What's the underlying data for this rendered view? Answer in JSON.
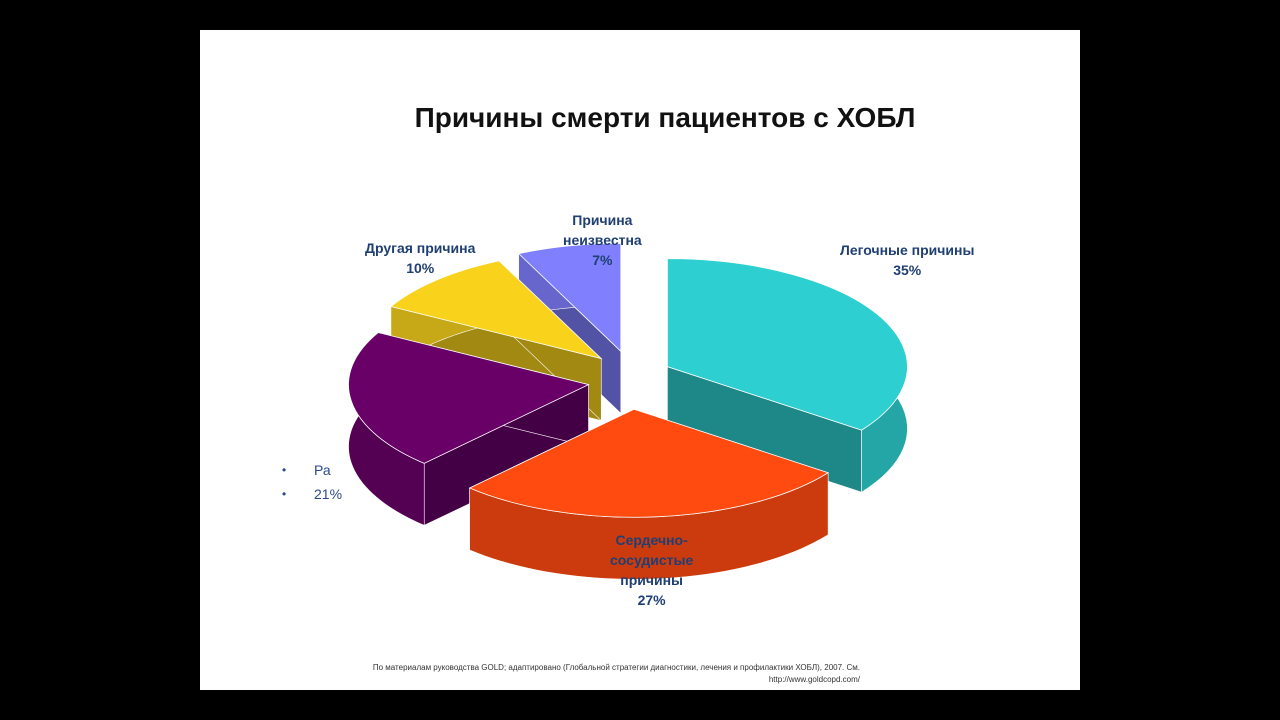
{
  "chart_data": {
    "type": "pie",
    "title": "Причины смерти пациентов с ХОБЛ",
    "slices": [
      {
        "label": "Легочные причины",
        "value": 35,
        "value_text": "35%",
        "color": "#2ecfd0"
      },
      {
        "label": "Сердечно-сосудистые причины",
        "value": 27,
        "value_text": "27%",
        "color": "#ff4a10"
      },
      {
        "label": "Ра",
        "value": 21,
        "value_text": "21%",
        "color": "#690068"
      },
      {
        "label": "Другая причина",
        "value": 10,
        "value_text": "10%",
        "color": "#f9d21c"
      },
      {
        "label": "Причина неизвестна",
        "value": 7,
        "value_text": "7%",
        "color": "#8080ff"
      }
    ]
  },
  "labels": {
    "pulmonary": [
      "Легочные причины",
      "35%"
    ],
    "cardio": [
      "Сердечно-",
      "сосудистые",
      "причины",
      "27%"
    ],
    "other": [
      "Другая причина",
      "10%"
    ],
    "unknown": [
      "Причина",
      "неизвестна",
      "7%"
    ]
  },
  "legend": {
    "bullet": "•",
    "rows": [
      "Ра",
      "21%"
    ]
  },
  "footnote": {
    "line1": "По материалам руководства GOLD; адаптировано (Глобальной стратегии диагностики, лечения и профилактики ХОБЛ), 2007. См.",
    "line2": "http://www.goldcopd.com/"
  }
}
